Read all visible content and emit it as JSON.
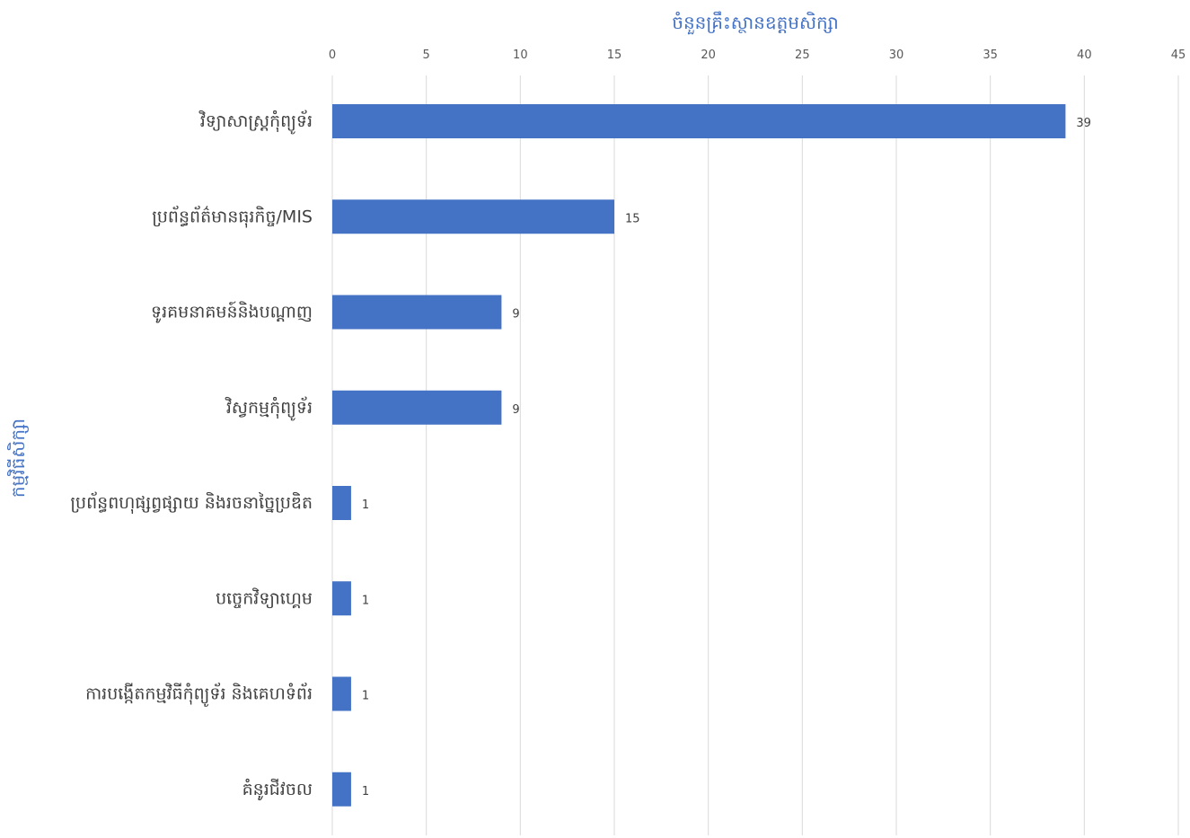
{
  "chart_data": {
    "type": "bar",
    "orientation": "horizontal",
    "xlabel": "ចំនួនគ្រឹះស្ថានឧត្តមសិក្សា",
    "ylabel": "កម្មវិធីសិក្សា",
    "xlim": [
      0,
      45
    ],
    "x_ticks": [
      0,
      5,
      10,
      15,
      20,
      25,
      30,
      35,
      40,
      45
    ],
    "x_axis_position": "top",
    "grid": true,
    "bar_color": "#4472c4",
    "title_color": "#4472c4",
    "categories": [
      "វិទ្យាសាស្រ្តកុំព្យូទ័រ",
      "ប្រព័ន្ធព័ត៌មានធុរកិច្ច/MIS",
      "ទូរគមនាគមន៍និងបណ្ដាញ",
      "វិស្វកម្មកុំព្យូទ័រ",
      "ប្រព័ន្ធពហុផ្សព្វផ្សាយ និងរចនាច្នៃប្រឌិត",
      "បច្ចេកវិទ្យាហ្គេម",
      "ការបង្កើតកម្មវិធីកុំព្យូទ័រ និងគេហទំព័រ",
      "គំនូរជីវចល"
    ],
    "values": [
      39,
      15,
      9,
      9,
      1,
      1,
      1,
      1
    ]
  }
}
